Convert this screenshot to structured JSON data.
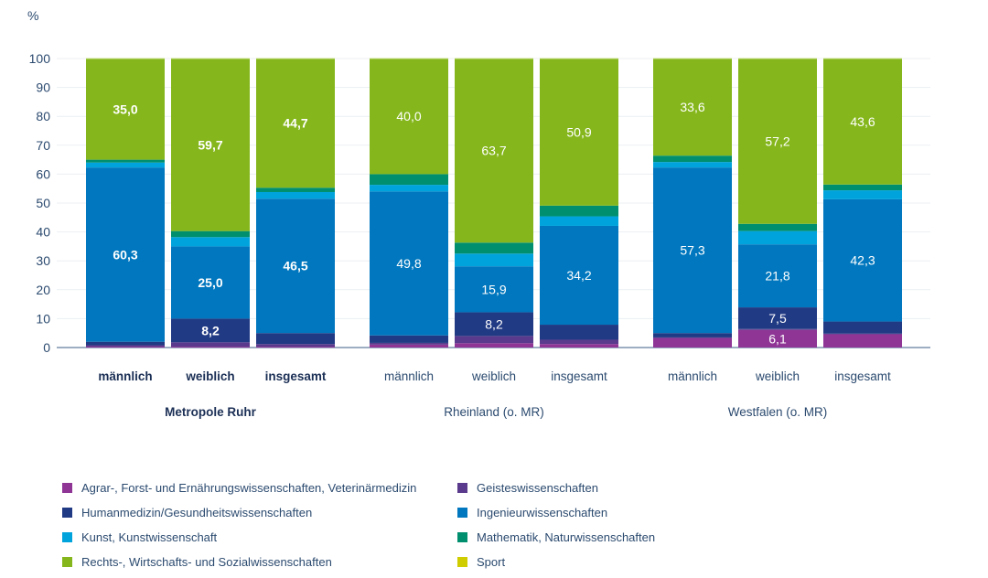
{
  "chart_data": {
    "type": "bar",
    "stacked": true,
    "title": "",
    "ylabel": "%",
    "xlabel": "",
    "ylim": [
      0,
      100
    ],
    "yticks": [
      0,
      10,
      20,
      30,
      40,
      50,
      60,
      70,
      80,
      90,
      100
    ],
    "grid": true,
    "legend_position": "bottom",
    "groups": [
      {
        "name": "Metropole Ruhr",
        "bold": true,
        "categories": [
          "männlich",
          "weiblich",
          "insgesamt"
        ]
      },
      {
        "name": "Rheinland (o. MR)",
        "bold": false,
        "categories": [
          "männlich",
          "weiblich",
          "insgesamt"
        ]
      },
      {
        "name": "Westfalen (o. MR)",
        "bold": false,
        "categories": [
          "männlich",
          "weiblich",
          "insgesamt"
        ]
      }
    ],
    "series": [
      {
        "name": "Agrar-, Forst- und Ernährungswissenschaften, Veterinärmedizin",
        "color": "#8e3596",
        "values": [
          0.3,
          0.3,
          0.3,
          1.0,
          1.5,
          1.2,
          3.3,
          6.1,
          4.6
        ],
        "labels": [
          null,
          null,
          null,
          null,
          null,
          null,
          null,
          "6,1",
          null
        ]
      },
      {
        "name": "Geisteswissenschaften",
        "color": "#5a3a8c",
        "values": [
          0.5,
          1.5,
          0.9,
          0.6,
          2.5,
          1.5,
          0.2,
          0.3,
          0.2
        ],
        "labels": [
          null,
          null,
          null,
          null,
          null,
          null,
          null,
          null,
          null
        ]
      },
      {
        "name": "Humanmedizin/Gesundheitswissenschaften",
        "color": "#213a84",
        "values": [
          1.2,
          8.2,
          3.8,
          2.6,
          8.2,
          5.2,
          1.5,
          7.5,
          4.2
        ],
        "labels": [
          null,
          "8,2",
          null,
          null,
          "8,2",
          null,
          null,
          "7,5",
          null
        ]
      },
      {
        "name": "Ingenieurwissenschaften",
        "color": "#0077be",
        "values": [
          60.3,
          25.0,
          46.5,
          49.8,
          15.9,
          34.2,
          57.3,
          21.8,
          42.3
        ],
        "labels": [
          "60,3",
          "25,0",
          "46,5",
          "49,8",
          "15,9",
          "34,2",
          "57,3",
          "21,8",
          "42,3"
        ]
      },
      {
        "name": "Kunst, Kunstwissenschaft",
        "color": "#00a3dc",
        "values": [
          1.7,
          3.2,
          2.3,
          2.3,
          4.4,
          3.3,
          1.9,
          4.6,
          3.1
        ],
        "labels": [
          null,
          null,
          null,
          null,
          null,
          null,
          null,
          null,
          null
        ]
      },
      {
        "name": "Mathematik, Naturwissenschaften",
        "color": "#008f6e",
        "values": [
          1.0,
          2.1,
          1.5,
          3.7,
          3.8,
          3.7,
          2.2,
          2.5,
          2.0
        ],
        "labels": [
          null,
          null,
          null,
          null,
          null,
          null,
          null,
          null,
          null
        ]
      },
      {
        "name": "Rechts-, Wirtschafts- und Sozialwissenschaften",
        "color": "#85b71c",
        "values": [
          35.0,
          59.7,
          44.7,
          40.0,
          63.7,
          50.9,
          33.6,
          57.2,
          43.6
        ],
        "labels": [
          "35,0",
          "59,7",
          "44,7",
          "40,0",
          "63,7",
          "50,9",
          "33,6",
          "57,2",
          "43,6"
        ]
      },
      {
        "name": "Sport",
        "color": "#cfcc00",
        "values": [
          0,
          0,
          0,
          0,
          0,
          0,
          0,
          0,
          0
        ],
        "labels": [
          null,
          null,
          null,
          null,
          null,
          null,
          null,
          null,
          null
        ]
      }
    ],
    "legend_order": [
      0,
      1,
      2,
      3,
      4,
      5,
      6,
      7
    ]
  }
}
